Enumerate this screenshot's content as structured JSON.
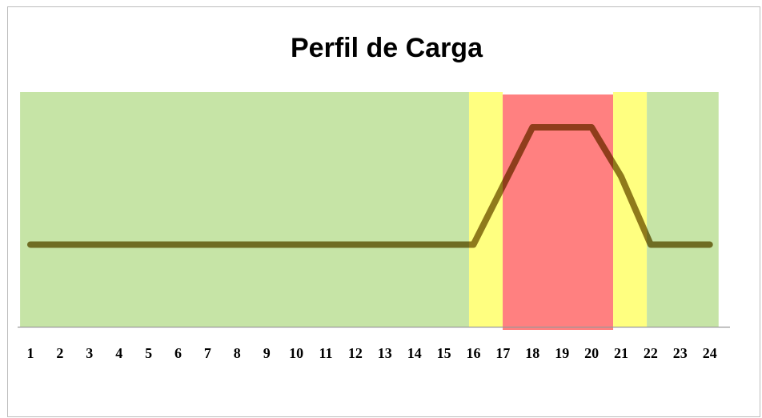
{
  "chart_data": {
    "type": "line",
    "title": "Perfil de Carga",
    "categories": [
      "1",
      "2",
      "3",
      "4",
      "5",
      "6",
      "7",
      "8",
      "9",
      "10",
      "11",
      "12",
      "13",
      "14",
      "15",
      "16",
      "17",
      "18",
      "19",
      "20",
      "21",
      "22",
      "23",
      "24"
    ],
    "values": [
      35,
      35,
      35,
      35,
      35,
      35,
      35,
      35,
      35,
      35,
      35,
      35,
      35,
      35,
      35,
      35,
      60,
      85,
      85,
      85,
      64,
      35,
      35,
      35
    ],
    "color": "#8f7a35",
    "ylim": [
      0,
      100
    ],
    "bands": [
      {
        "from": 0.65,
        "to": 15.85,
        "color": "#c6e4a6"
      },
      {
        "from": 15.85,
        "to": 16.99,
        "color": "#ffff80"
      },
      {
        "from": 16.99,
        "to": 20.73,
        "color": "#ff8080"
      },
      {
        "from": 20.73,
        "to": 21.87,
        "color": "#ffff80"
      },
      {
        "from": 21.87,
        "to": 24.3,
        "color": "#c6e4a6"
      }
    ]
  }
}
